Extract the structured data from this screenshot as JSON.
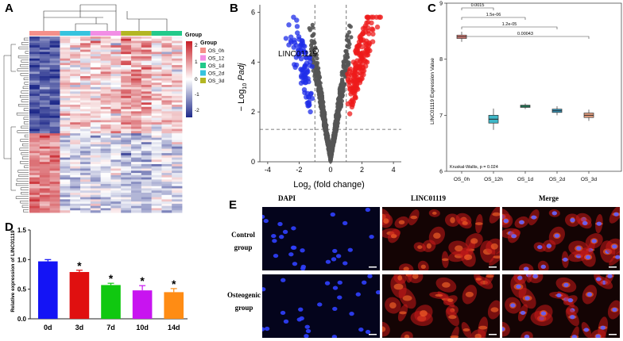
{
  "panels": {
    "a": {
      "letter": "A"
    },
    "b": {
      "letter": "B"
    },
    "c": {
      "letter": "C"
    },
    "d": {
      "letter": "D"
    },
    "e": {
      "letter": "E"
    }
  },
  "heatmap": {
    "legend_title_1": "Group",
    "legend_title_2": "Group",
    "scale_ticks": [
      "2",
      "1",
      "0",
      "-1",
      "-2"
    ],
    "groups": [
      {
        "name": "OS_0hr",
        "color": "#f4908b"
      },
      {
        "name": "OS_12hr",
        "color": "#f28ee5"
      },
      {
        "name": "OS_1d",
        "color": "#22c98a"
      },
      {
        "name": "OS_2d",
        "color": "#36c3de"
      },
      {
        "name": "OS_3d",
        "color": "#b3b623"
      }
    ],
    "colors": {
      "high": "#c81d25",
      "mid": "#ffffff",
      "low": "#1f2a8a"
    }
  },
  "chart_data": [
    {
      "type": "scatter",
      "title": "",
      "xlabel": "Log2 (fold change)",
      "ylabel": "-Log10 Padj",
      "xlim": [
        -4.5,
        4.5
      ],
      "ylim": [
        0,
        6
      ],
      "xticks": [
        "-4",
        "-2",
        "0",
        "2",
        "4"
      ],
      "yticks": [
        "0",
        "2",
        "4",
        "6"
      ],
      "threshold_x": [
        -1,
        1
      ],
      "threshold_y": 1.3,
      "annotation": "LINC01119",
      "series_colors": {
        "down": "#1f2ee8",
        "ns": "#555555",
        "up": "#ee1b1b"
      }
    },
    {
      "type": "box",
      "ylabel": "LINC01119 Expression Value",
      "categories": [
        "OS_0h",
        "OS_12h",
        "OS_1d",
        "OS_2d",
        "OS_3d"
      ],
      "medians": [
        8.4,
        6.93,
        7.16,
        7.08,
        7.0
      ],
      "colors": [
        "#f08a82",
        "#3fb8c8",
        "#22b07a",
        "#3aa0c8",
        "#e8a080"
      ],
      "yticks": [
        "6",
        "7",
        "8",
        "9"
      ],
      "ylim": [
        6,
        9
      ],
      "pvalues": [
        "0.0015",
        "1.5e-06",
        "1.2e-05",
        "0.00043"
      ],
      "test_label": "Kruskal-Wallis, p = 0.024"
    },
    {
      "type": "bar",
      "ylabel": "Relative expression of LINC01119",
      "categories": [
        "0d",
        "3d",
        "7d",
        "10d",
        "14d"
      ],
      "values": [
        0.97,
        0.79,
        0.57,
        0.48,
        0.45
      ],
      "errors": [
        0.03,
        0.03,
        0.03,
        0.08,
        0.06
      ],
      "colors": [
        "#1414f5",
        "#e01010",
        "#10c810",
        "#c814f0",
        "#ff8c14"
      ],
      "significance": [
        "",
        "*",
        "*",
        "*",
        "*"
      ],
      "ylim": [
        0,
        1.5
      ],
      "yticks": [
        "0.0",
        "0.5",
        "1.0",
        "1.5"
      ]
    }
  ],
  "microscopy": {
    "columns": [
      "DAPI",
      "LINC01119",
      "Merge"
    ],
    "rows": [
      {
        "line1": "Control",
        "line2": "group"
      },
      {
        "line1": "Osteogenic",
        "line2": "group"
      }
    ]
  }
}
